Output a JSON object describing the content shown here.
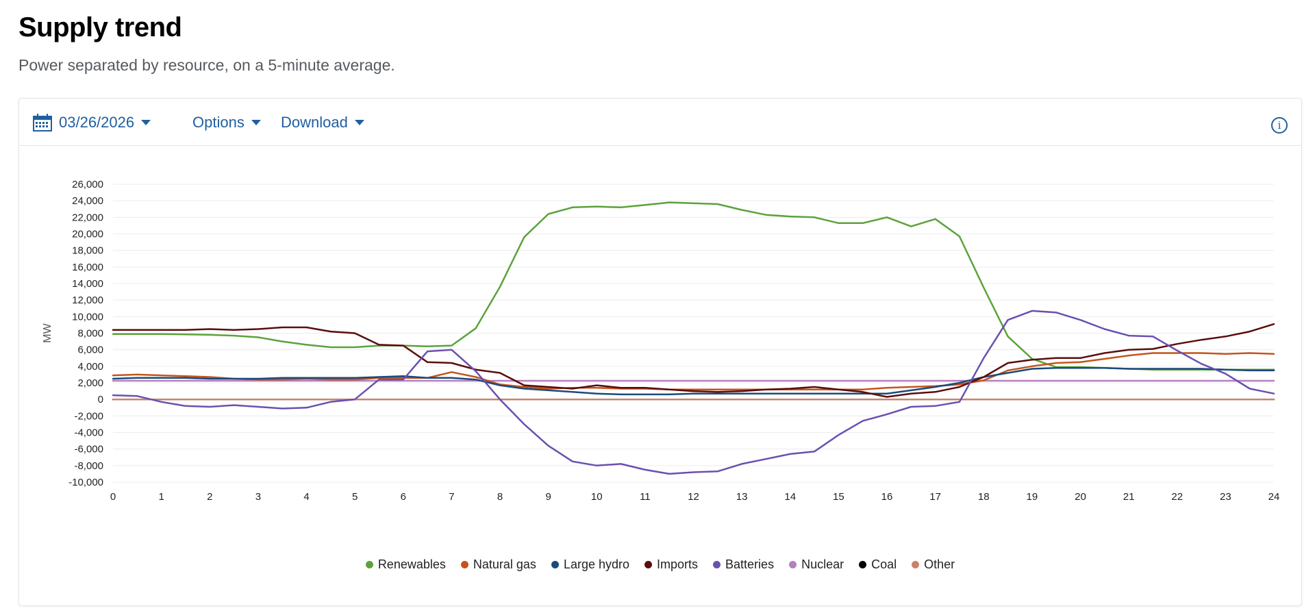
{
  "page": {
    "title": "Supply trend",
    "subtitle": "Power separated by resource, on a 5-minute average."
  },
  "toolbar": {
    "date": "03/26/2026",
    "options_label": "Options",
    "download_label": "Download",
    "info_glyph": "i"
  },
  "chart_data": {
    "type": "line",
    "title": "",
    "xlabel": "",
    "ylabel": "MW",
    "xlim": [
      0,
      24
    ],
    "ylim": [
      -10000,
      26000
    ],
    "x_ticks": [
      0,
      1,
      2,
      3,
      4,
      5,
      6,
      7,
      8,
      9,
      10,
      11,
      12,
      13,
      14,
      15,
      16,
      17,
      18,
      19,
      20,
      21,
      22,
      23,
      24
    ],
    "y_ticks": [
      -10000,
      -8000,
      -6000,
      -4000,
      -2000,
      0,
      2000,
      4000,
      6000,
      8000,
      10000,
      12000,
      14000,
      16000,
      18000,
      20000,
      22000,
      24000,
      26000
    ],
    "legend_position": "bottom-center",
    "grid": true,
    "x": [
      0,
      0.5,
      1,
      1.5,
      2,
      2.5,
      3,
      3.5,
      4,
      4.5,
      5,
      5.5,
      6,
      6.5,
      7,
      7.5,
      8,
      8.5,
      9,
      9.5,
      10,
      10.5,
      11,
      11.5,
      12,
      12.5,
      13,
      13.5,
      14,
      14.5,
      15,
      15.5,
      16,
      16.5,
      17,
      17.5,
      18,
      18.5,
      19,
      19.5,
      20,
      20.5,
      21,
      21.5,
      22,
      22.5,
      23,
      23.5,
      24
    ],
    "series": [
      {
        "name": "Renewables",
        "color": "#5ba23b",
        "values": [
          7900,
          7900,
          7900,
          7850,
          7800,
          7700,
          7500,
          7000,
          6600,
          6300,
          6300,
          6500,
          6500,
          6400,
          6500,
          8600,
          13600,
          19600,
          22400,
          23200,
          23300,
          23200,
          23500,
          23800,
          23700,
          23600,
          22900,
          22300,
          22100,
          22000,
          21300,
          21300,
          22000,
          20900,
          21800,
          19700,
          13500,
          7600,
          4900,
          3900,
          3900,
          3800,
          3700,
          3600,
          3600,
          3600,
          3600,
          3600,
          3600
        ]
      },
      {
        "name": "Natural gas",
        "color": "#c4541c",
        "values": [
          2900,
          3000,
          2900,
          2800,
          2700,
          2500,
          2400,
          2400,
          2500,
          2400,
          2400,
          2600,
          2600,
          2600,
          3300,
          2700,
          1800,
          1500,
          1300,
          1400,
          1400,
          1300,
          1300,
          1200,
          1200,
          1200,
          1200,
          1200,
          1200,
          1200,
          1200,
          1200,
          1400,
          1500,
          1600,
          1800,
          2300,
          3500,
          4000,
          4400,
          4500,
          4900,
          5300,
          5600,
          5600,
          5600,
          5500,
          5600,
          5500
        ]
      },
      {
        "name": "Large hydro",
        "color": "#1b4a7a",
        "values": [
          2500,
          2600,
          2600,
          2600,
          2500,
          2500,
          2500,
          2600,
          2600,
          2600,
          2600,
          2700,
          2800,
          2600,
          2600,
          2400,
          1700,
          1300,
          1100,
          900,
          700,
          600,
          600,
          600,
          700,
          700,
          700,
          700,
          700,
          700,
          700,
          700,
          700,
          1100,
          1500,
          2000,
          2700,
          3200,
          3700,
          3800,
          3800,
          3800,
          3700,
          3700,
          3700,
          3700,
          3600,
          3500,
          3500
        ]
      },
      {
        "name": "Imports",
        "color": "#5c0c0c",
        "values": [
          8400,
          8400,
          8400,
          8400,
          8500,
          8400,
          8500,
          8700,
          8700,
          8200,
          8000,
          6600,
          6500,
          4500,
          4400,
          3600,
          3200,
          1700,
          1500,
          1300,
          1700,
          1400,
          1400,
          1200,
          1000,
          900,
          1000,
          1200,
          1300,
          1500,
          1200,
          900,
          300,
          700,
          900,
          1500,
          2700,
          4400,
          4800,
          5000,
          5000,
          5600,
          6000,
          6100,
          6700,
          7200,
          7600,
          8200,
          9100
        ]
      },
      {
        "name": "Batteries",
        "color": "#6a50b0",
        "values": [
          500,
          400,
          -300,
          -800,
          -900,
          -700,
          -900,
          -1100,
          -1000,
          -300,
          0,
          2400,
          2400,
          5800,
          6000,
          3400,
          0,
          -3000,
          -5600,
          -7500,
          -8000,
          -7800,
          -8500,
          -9000,
          -8800,
          -8700,
          -7800,
          -7200,
          -6600,
          -6300,
          -4300,
          -2600,
          -1800,
          -900,
          -800,
          -300,
          5000,
          9600,
          10700,
          10500,
          9600,
          8500,
          7700,
          7600,
          5900,
          4300,
          3100,
          1300,
          700
        ]
      },
      {
        "name": "Nuclear",
        "color": "#b580c0",
        "values": [
          2250,
          2250,
          2250,
          2250,
          2250,
          2250,
          2250,
          2250,
          2250,
          2250,
          2250,
          2250,
          2250,
          2250,
          2250,
          2250,
          2250,
          2250,
          2250,
          2250,
          2250,
          2250,
          2250,
          2250,
          2250,
          2250,
          2250,
          2250,
          2250,
          2250,
          2250,
          2250,
          2250,
          2250,
          2250,
          2250,
          2250,
          2250,
          2250,
          2250,
          2250,
          2250,
          2250,
          2250,
          2250,
          2250,
          2250,
          2250,
          2250
        ]
      },
      {
        "name": "Coal",
        "color": "#000000",
        "values": [
          0,
          0,
          0,
          0,
          0,
          0,
          0,
          0,
          0,
          0,
          0,
          0,
          0,
          0,
          0,
          0,
          0,
          0,
          0,
          0,
          0,
          0,
          0,
          0,
          0,
          0,
          0,
          0,
          0,
          0,
          0,
          0,
          0,
          0,
          0,
          0,
          0,
          0,
          0,
          0,
          0,
          0,
          0,
          0,
          0,
          0,
          0,
          0,
          0
        ]
      },
      {
        "name": "Other",
        "color": "#c8826a",
        "values": [
          0,
          0,
          0,
          0,
          0,
          0,
          0,
          0,
          0,
          0,
          0,
          0,
          0,
          0,
          0,
          0,
          0,
          0,
          0,
          0,
          0,
          0,
          0,
          0,
          0,
          0,
          0,
          0,
          0,
          0,
          0,
          0,
          0,
          0,
          0,
          0,
          0,
          0,
          0,
          0,
          0,
          0,
          0,
          0,
          0,
          0,
          0,
          0,
          0
        ]
      }
    ]
  }
}
